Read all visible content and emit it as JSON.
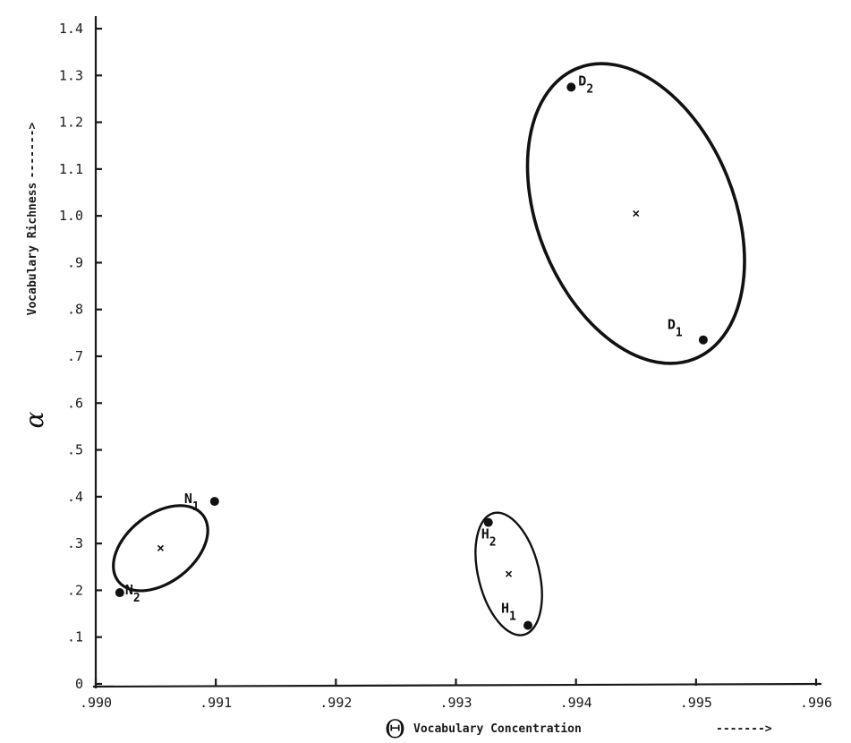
{
  "chart_data": {
    "type": "scatter",
    "xlabel": "Vocabulary Concentration",
    "xlabel_symbol": "Θ",
    "xlabel_arrow": "------->",
    "ylabel": "Vocabulary Richness",
    "ylabel_symbol": "α",
    "ylabel_arrow": "------->",
    "xlim": [
      0.99,
      0.996
    ],
    "ylim": [
      0,
      1.4
    ],
    "x_ticks": [
      {
        "value": 0.99,
        "label": ".990"
      },
      {
        "value": 0.991,
        "label": ".991"
      },
      {
        "value": 0.992,
        "label": ".992"
      },
      {
        "value": 0.993,
        "label": ".993"
      },
      {
        "value": 0.994,
        "label": ".994"
      },
      {
        "value": 0.995,
        "label": ".995"
      },
      {
        "value": 0.996,
        "label": ".996"
      }
    ],
    "y_ticks": [
      {
        "value": 0.0,
        "label": "0"
      },
      {
        "value": 0.1,
        "label": ".1"
      },
      {
        "value": 0.2,
        "label": ".2"
      },
      {
        "value": 0.3,
        "label": ".3"
      },
      {
        "value": 0.4,
        "label": ".4"
      },
      {
        "value": 0.5,
        "label": ".5"
      },
      {
        "value": 0.6,
        "label": ".6"
      },
      {
        "value": 0.7,
        "label": ".7"
      },
      {
        "value": 0.8,
        "label": ".8"
      },
      {
        "value": 0.9,
        "label": ".9"
      },
      {
        "value": 1.0,
        "label": "1.0"
      },
      {
        "value": 1.1,
        "label": "1.1"
      },
      {
        "value": 1.2,
        "label": "1.2"
      },
      {
        "value": 1.3,
        "label": "1.3"
      },
      {
        "value": 1.4,
        "label": "1.4"
      }
    ],
    "points": [
      {
        "label": "N",
        "sub": "1",
        "x": 0.99099,
        "y": 0.39
      },
      {
        "label": "N",
        "sub": "2",
        "x": 0.9902,
        "y": 0.195
      },
      {
        "label": "H",
        "sub": "1",
        "x": 0.9936,
        "y": 0.125
      },
      {
        "label": "H",
        "sub": "2",
        "x": 0.99327,
        "y": 0.345
      },
      {
        "label": "D",
        "sub": "1",
        "x": 0.99506,
        "y": 0.735
      },
      {
        "label": "D",
        "sub": "2",
        "x": 0.99396,
        "y": 1.275
      }
    ],
    "clusters": [
      {
        "members": [
          "N1",
          "N2"
        ],
        "center": {
          "x": 0.99054,
          "y": 0.29
        }
      },
      {
        "members": [
          "H1",
          "H2"
        ],
        "center": {
          "x": 0.99344,
          "y": 0.235
        }
      },
      {
        "members": [
          "D1",
          "D2"
        ],
        "center": {
          "x": 0.9945,
          "y": 1.005
        }
      }
    ],
    "grid": false,
    "legend": "none"
  }
}
